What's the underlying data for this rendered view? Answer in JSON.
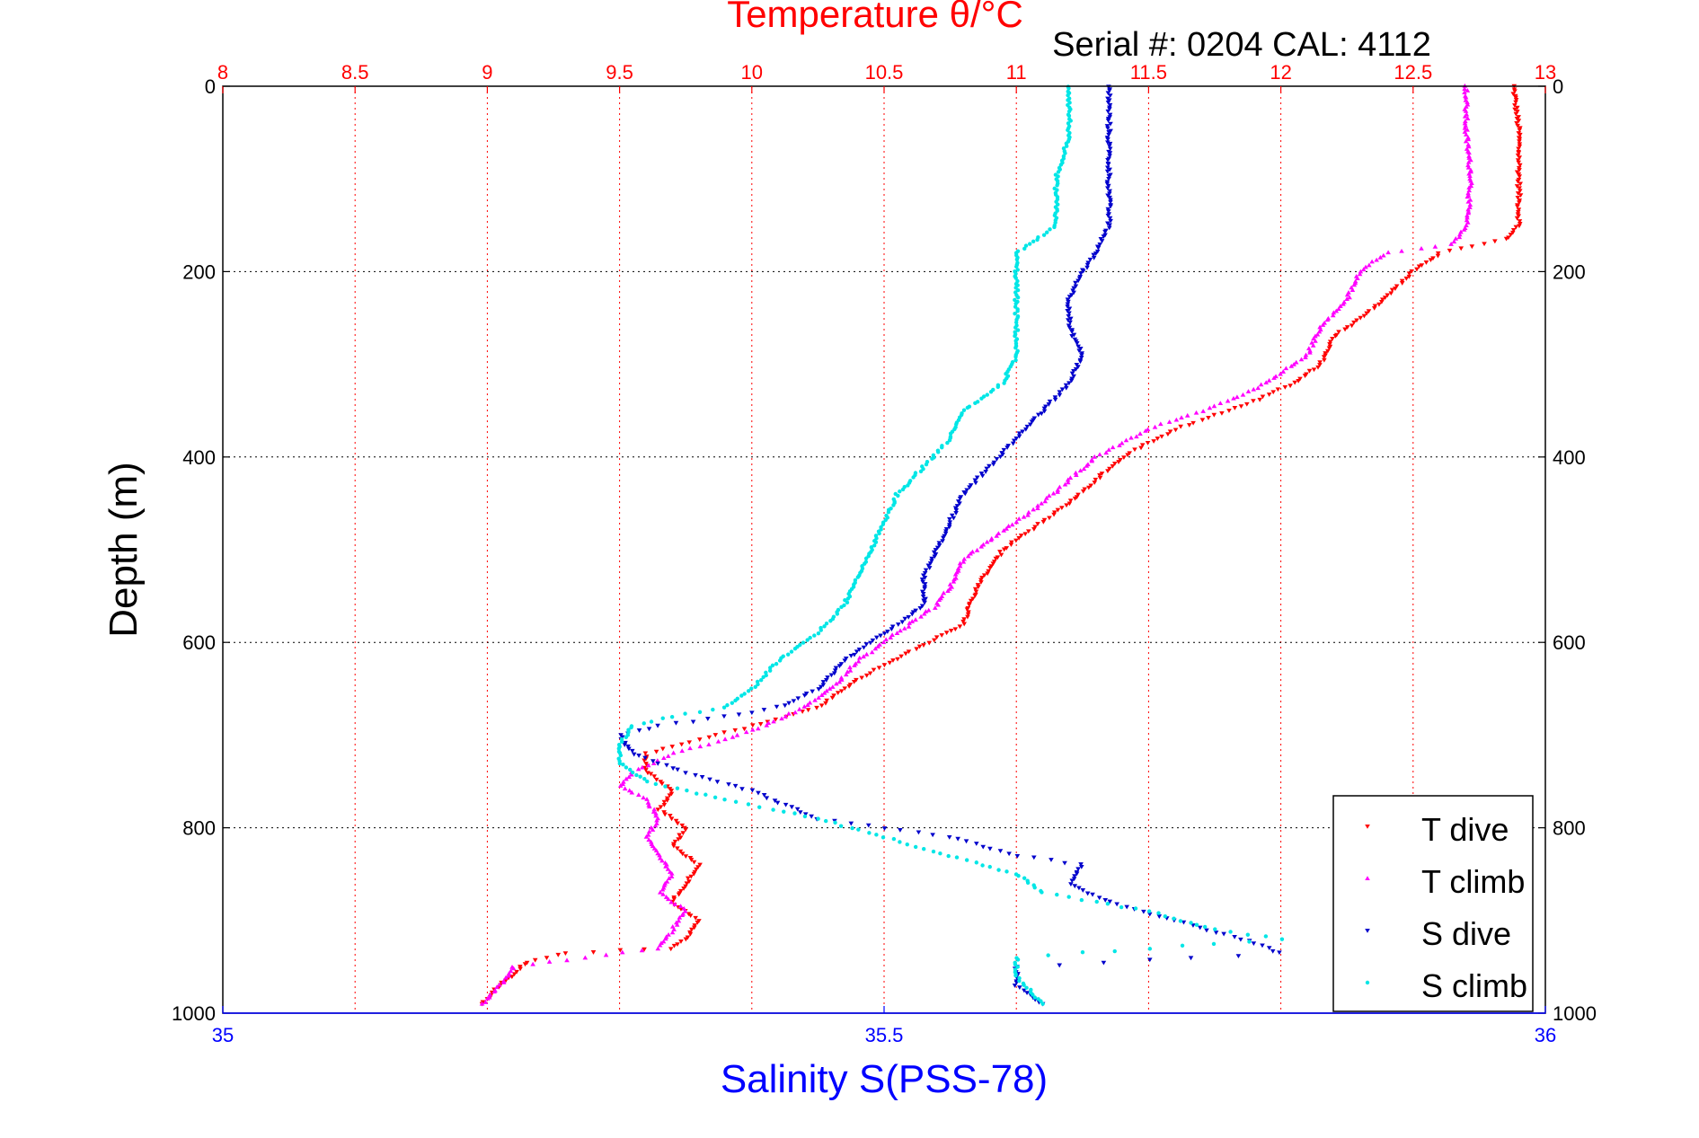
{
  "chart_data": {
    "type": "scatter",
    "title": "Temperature θ/°C",
    "subtitle": "Serial #: 0204  CAL: 4112",
    "ylabel": "Depth (m)",
    "xlabel_bottom": "Salinity S(PSS-78)",
    "xlabel_top": "Temperature θ/°C",
    "ylim": [
      0,
      1000
    ],
    "y_reversed": true,
    "xlim_top": [
      8,
      13
    ],
    "xlim_bottom": [
      35,
      36
    ],
    "yticks": [
      "0",
      "200",
      "400",
      "600",
      "800",
      "1000"
    ],
    "xticks_top": [
      "8",
      "8.5",
      "9",
      "9.5",
      "10",
      "10.5",
      "11",
      "11.5",
      "12",
      "12.5",
      "13"
    ],
    "xticks_bottom": [
      "35",
      "35.5",
      "36"
    ],
    "grid": true,
    "legend_position": "bottom-right",
    "colors": {
      "t_dive": "#ff0000",
      "t_climb": "#ff00ff",
      "s_dive": "#0000cc",
      "s_climb": "#00e6e6",
      "top_axis": "#ff0000",
      "bottom_axis": "#0000ff",
      "temperature_grid": "#ff0000",
      "depth_grid": "#000000"
    },
    "series": [
      {
        "name": "T dive",
        "axis": "temperature",
        "marker": "down-triangle",
        "points": [
          [
            12.88,
            0
          ],
          [
            12.9,
            50
          ],
          [
            12.9,
            100
          ],
          [
            12.9,
            150
          ],
          [
            12.85,
            165
          ],
          [
            12.6,
            180
          ],
          [
            12.5,
            200
          ],
          [
            12.35,
            240
          ],
          [
            12.2,
            270
          ],
          [
            12.15,
            300
          ],
          [
            12.05,
            320
          ],
          [
            11.9,
            340
          ],
          [
            11.6,
            370
          ],
          [
            11.4,
            400
          ],
          [
            11.2,
            450
          ],
          [
            10.95,
            500
          ],
          [
            10.85,
            540
          ],
          [
            10.8,
            580
          ],
          [
            10.6,
            610
          ],
          [
            10.4,
            640
          ],
          [
            10.25,
            670
          ],
          [
            10.0,
            690
          ],
          [
            9.8,
            705
          ],
          [
            9.6,
            720
          ],
          [
            9.6,
            740
          ],
          [
            9.7,
            760
          ],
          [
            9.65,
            780
          ],
          [
            9.75,
            800
          ],
          [
            9.7,
            820
          ],
          [
            9.8,
            840
          ],
          [
            9.75,
            860
          ],
          [
            9.7,
            880
          ],
          [
            9.8,
            900
          ],
          [
            9.75,
            920
          ],
          [
            9.7,
            930
          ],
          [
            9.3,
            935
          ],
          [
            9.15,
            945
          ],
          [
            9.05,
            970
          ],
          [
            8.98,
            990
          ]
        ]
      },
      {
        "name": "T climb",
        "axis": "temperature",
        "marker": "up-triangle",
        "points": [
          [
            12.7,
            0
          ],
          [
            12.7,
            50
          ],
          [
            12.72,
            100
          ],
          [
            12.7,
            150
          ],
          [
            12.65,
            170
          ],
          [
            12.4,
            180
          ],
          [
            12.3,
            200
          ],
          [
            12.25,
            230
          ],
          [
            12.15,
            260
          ],
          [
            12.1,
            290
          ],
          [
            11.95,
            320
          ],
          [
            11.8,
            340
          ],
          [
            11.5,
            370
          ],
          [
            11.3,
            400
          ],
          [
            11.1,
            450
          ],
          [
            10.95,
            480
          ],
          [
            10.8,
            510
          ],
          [
            10.75,
            540
          ],
          [
            10.7,
            560
          ],
          [
            10.55,
            590
          ],
          [
            10.4,
            620
          ],
          [
            10.3,
            650
          ],
          [
            10.2,
            670
          ],
          [
            10.05,
            690
          ],
          [
            9.9,
            705
          ],
          [
            9.7,
            720
          ],
          [
            9.55,
            740
          ],
          [
            9.5,
            755
          ],
          [
            9.6,
            770
          ],
          [
            9.65,
            790
          ],
          [
            9.6,
            810
          ],
          [
            9.65,
            830
          ],
          [
            9.7,
            850
          ],
          [
            9.65,
            870
          ],
          [
            9.75,
            890
          ],
          [
            9.7,
            910
          ],
          [
            9.65,
            930
          ],
          [
            9.1,
            950
          ],
          [
            9.05,
            970
          ],
          [
            8.98,
            990
          ]
        ]
      },
      {
        "name": "S dive",
        "axis": "salinity",
        "marker": "down-triangle",
        "points": [
          [
            35.67,
            0
          ],
          [
            35.67,
            50
          ],
          [
            35.67,
            100
          ],
          [
            35.67,
            150
          ],
          [
            35.66,
            180
          ],
          [
            35.65,
            200
          ],
          [
            35.64,
            230
          ],
          [
            35.64,
            260
          ],
          [
            35.65,
            290
          ],
          [
            35.64,
            320
          ],
          [
            35.62,
            350
          ],
          [
            35.6,
            380
          ],
          [
            35.58,
            410
          ],
          [
            35.56,
            440
          ],
          [
            35.55,
            470
          ],
          [
            35.54,
            500
          ],
          [
            35.53,
            530
          ],
          [
            35.53,
            560
          ],
          [
            35.5,
            590
          ],
          [
            35.47,
            620
          ],
          [
            35.45,
            650
          ],
          [
            35.42,
            670
          ],
          [
            35.38,
            680
          ],
          [
            35.33,
            690
          ],
          [
            35.3,
            700
          ],
          [
            35.31,
            720
          ],
          [
            35.35,
            740
          ],
          [
            35.4,
            760
          ],
          [
            35.45,
            790
          ],
          [
            35.55,
            810
          ],
          [
            35.6,
            830
          ],
          [
            35.65,
            840
          ],
          [
            35.64,
            860
          ],
          [
            35.67,
            880
          ],
          [
            35.72,
            900
          ],
          [
            35.77,
            920
          ],
          [
            35.8,
            935
          ],
          [
            35.6,
            950
          ],
          [
            35.6,
            970
          ],
          [
            35.62,
            990
          ]
        ]
      },
      {
        "name": "S climb",
        "axis": "salinity",
        "marker": "dot",
        "points": [
          [
            35.64,
            0
          ],
          [
            35.64,
            50
          ],
          [
            35.63,
            100
          ],
          [
            35.63,
            150
          ],
          [
            35.6,
            180
          ],
          [
            35.6,
            200
          ],
          [
            35.6,
            230
          ],
          [
            35.6,
            260
          ],
          [
            35.6,
            290
          ],
          [
            35.59,
            320
          ],
          [
            35.56,
            350
          ],
          [
            35.55,
            380
          ],
          [
            35.53,
            410
          ],
          [
            35.51,
            440
          ],
          [
            35.5,
            470
          ],
          [
            35.49,
            500
          ],
          [
            35.48,
            530
          ],
          [
            35.47,
            560
          ],
          [
            35.45,
            590
          ],
          [
            35.42,
            620
          ],
          [
            35.4,
            650
          ],
          [
            35.38,
            670
          ],
          [
            35.34,
            680
          ],
          [
            35.31,
            690
          ],
          [
            35.3,
            710
          ],
          [
            35.3,
            730
          ],
          [
            35.32,
            750
          ],
          [
            35.38,
            770
          ],
          [
            35.45,
            790
          ],
          [
            35.5,
            810
          ],
          [
            35.55,
            830
          ],
          [
            35.6,
            850
          ],
          [
            35.62,
            870
          ],
          [
            35.7,
            890
          ],
          [
            35.75,
            910
          ],
          [
            35.8,
            920
          ],
          [
            35.6,
            940
          ],
          [
            35.6,
            960
          ],
          [
            35.62,
            990
          ]
        ]
      }
    ]
  }
}
